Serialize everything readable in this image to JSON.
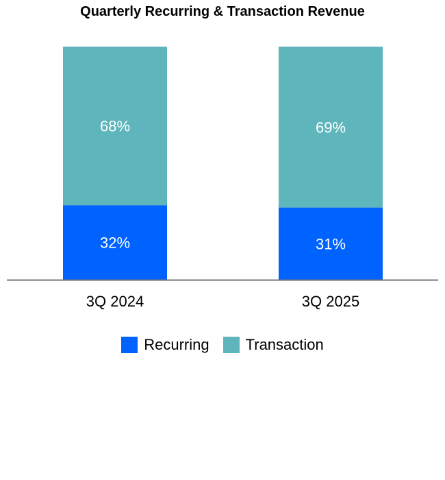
{
  "chart_data": {
    "type": "bar",
    "stacked": true,
    "title": "Quarterly Recurring & Transaction Revenue",
    "categories": [
      "3Q 2024",
      "3Q 2025"
    ],
    "series": [
      {
        "name": "Recurring",
        "values": [
          32,
          31
        ],
        "labels": [
          "32%",
          "31%"
        ],
        "color": "#0062FF"
      },
      {
        "name": "Transaction",
        "values": [
          68,
          69
        ],
        "labels": [
          "68%",
          "69%"
        ],
        "color": "#5EB5BB"
      }
    ],
    "ylim": [
      0,
      100
    ],
    "grid": false,
    "legend": "bottom"
  }
}
